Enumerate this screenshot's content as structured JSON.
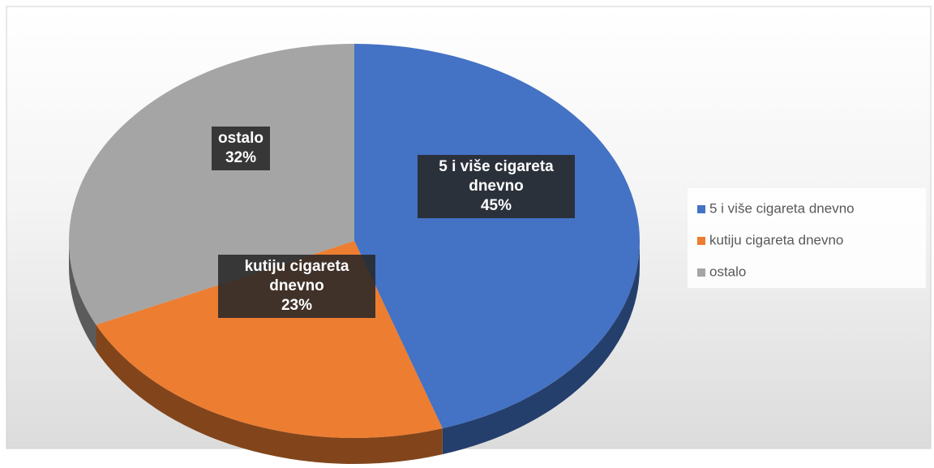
{
  "chart_data": {
    "type": "pie",
    "categories": [
      "5 i više cigareta dnevno",
      "kutiju cigareta dnevno",
      "ostalo"
    ],
    "values": [
      45,
      23,
      32
    ],
    "value_labels": [
      "45%",
      "23%",
      "32%"
    ],
    "colors": [
      "#4472c4",
      "#ed7d31",
      "#a5a5a5"
    ],
    "legend": "right"
  }
}
